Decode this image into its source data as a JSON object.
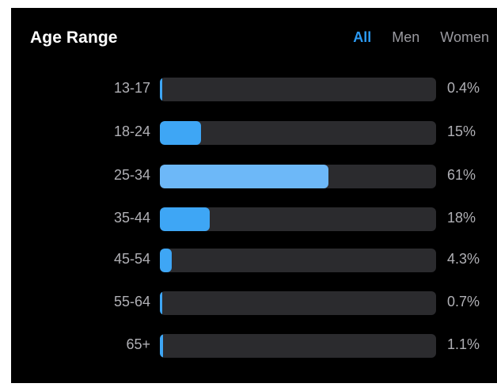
{
  "header": {
    "title": "Age Range",
    "tabs": [
      {
        "label": "All",
        "active": true
      },
      {
        "label": "Men",
        "active": false
      },
      {
        "label": "Women",
        "active": false
      }
    ]
  },
  "colors": {
    "accent": "#2b9af3",
    "bar_default": "#3ea6f5",
    "bar_highlight": "#6db8f8",
    "track": "#2b2b2e"
  },
  "rows": [
    {
      "range": "13-17",
      "value": "0.4%",
      "fraction": 0.004,
      "highlight": false
    },
    {
      "range": "18-24",
      "value": "15%",
      "fraction": 0.15,
      "highlight": false
    },
    {
      "range": "25-34",
      "value": "61%",
      "fraction": 0.61,
      "highlight": true
    },
    {
      "range": "35-44",
      "value": "18%",
      "fraction": 0.18,
      "highlight": false
    },
    {
      "range": "45-54",
      "value": "4.3%",
      "fraction": 0.043,
      "highlight": false
    },
    {
      "range": "55-64",
      "value": "0.7%",
      "fraction": 0.007,
      "highlight": false
    },
    {
      "range": "65+",
      "value": "1.1%",
      "fraction": 0.011,
      "highlight": false
    }
  ]
}
